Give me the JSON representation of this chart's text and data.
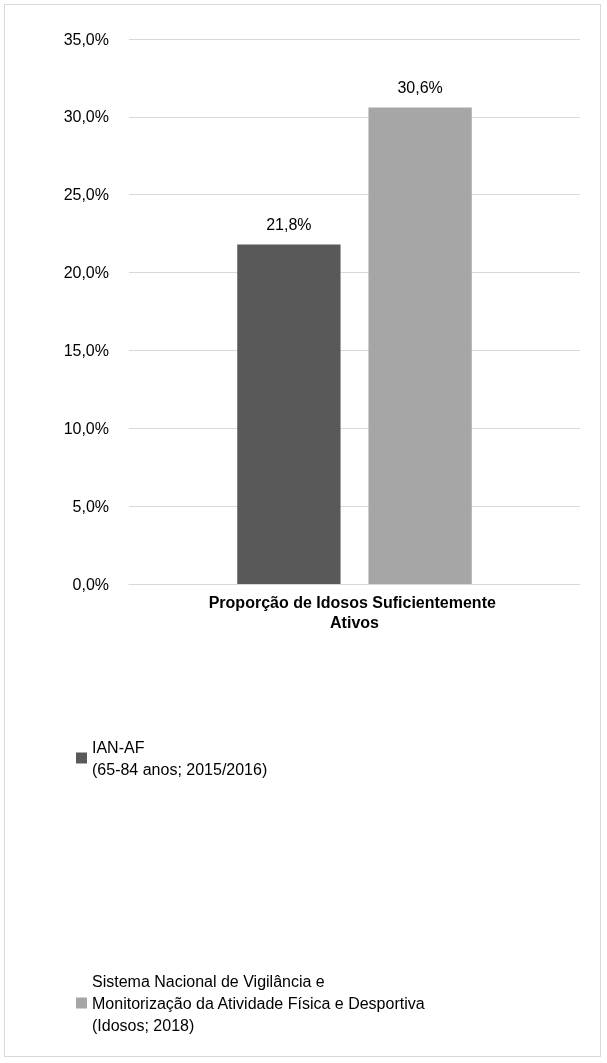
{
  "chart_data": {
    "type": "bar",
    "categories": [
      "Proporção de Idosos Suficientemente Ativos"
    ],
    "series": [
      {
        "name": "IAN-AF\n(65-84 anos; 2015/2016)",
        "color": "#595959",
        "values": [
          21.8
        ],
        "value_labels": [
          "21,8%"
        ]
      },
      {
        "name": "Sistema Nacional de Vigilância e\nMonitorização da Atividade Física e Desportiva\n(Idosos; 2018)",
        "color": "#a6a6a6",
        "values": [
          30.6
        ],
        "value_labels": [
          "30,6%"
        ]
      }
    ],
    "ylim": [
      0,
      35
    ],
    "yticks": [
      {
        "value": 0,
        "label": "0,0%"
      },
      {
        "value": 5,
        "label": "5,0%"
      },
      {
        "value": 10,
        "label": "10,0%"
      },
      {
        "value": 15,
        "label": "15,0%"
      },
      {
        "value": 20,
        "label": "20,0%"
      },
      {
        "value": 25,
        "label": "25,0%"
      },
      {
        "value": 30,
        "label": "30,0%"
      },
      {
        "value": 35,
        "label": "35,0%"
      }
    ],
    "grid": "y",
    "legend": "bottom"
  }
}
